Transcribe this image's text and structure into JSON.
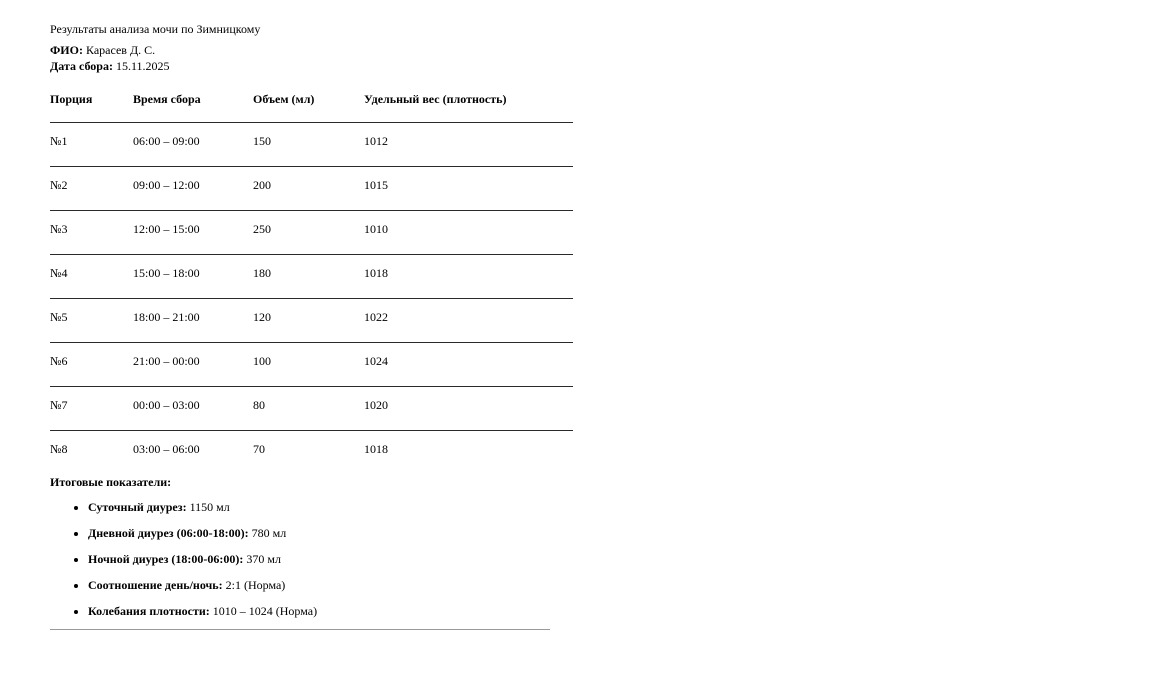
{
  "document": {
    "title": "Результаты анализа мочи по Зимницкому",
    "patient": {
      "label": "ФИО:",
      "value": "Карасев Д. С."
    },
    "collection_date": {
      "label": "Дата сбора:",
      "value": "15.11.2025"
    },
    "table": {
      "headers": [
        "Порция",
        "Время сбора",
        "Объем (мл)",
        "Удельный вес (плотность)"
      ],
      "rows": [
        [
          "№1",
          "06:00 – 09:00",
          "150",
          "1012"
        ],
        [
          "№2",
          "09:00 – 12:00",
          "200",
          "1015"
        ],
        [
          "№3",
          "12:00 – 15:00",
          "250",
          "1010"
        ],
        [
          "№4",
          "15:00 – 18:00",
          "180",
          "1018"
        ],
        [
          "№5",
          "18:00 – 21:00",
          "120",
          "1022"
        ],
        [
          "№6",
          "21:00 – 00:00",
          "100",
          "1024"
        ],
        [
          "№7",
          "00:00 – 03:00",
          "80",
          "1020"
        ],
        [
          "№8",
          "03:00 – 06:00",
          "70",
          "1018"
        ]
      ]
    },
    "summary": {
      "heading": "Итоговые показатели:",
      "items": [
        {
          "label": "Суточный диурез:",
          "value": "1150 мл"
        },
        {
          "label": "Дневной диурез (06:00-18:00):",
          "value": "780 мл"
        },
        {
          "label": "Ночной диурез (18:00-06:00):",
          "value": "370 мл"
        },
        {
          "label": "Соотношение день/ночь:",
          "value": "2:1 (Норма)"
        },
        {
          "label": "Колебания плотности:",
          "value": "1010 – 1024 (Норма)"
        }
      ]
    }
  }
}
